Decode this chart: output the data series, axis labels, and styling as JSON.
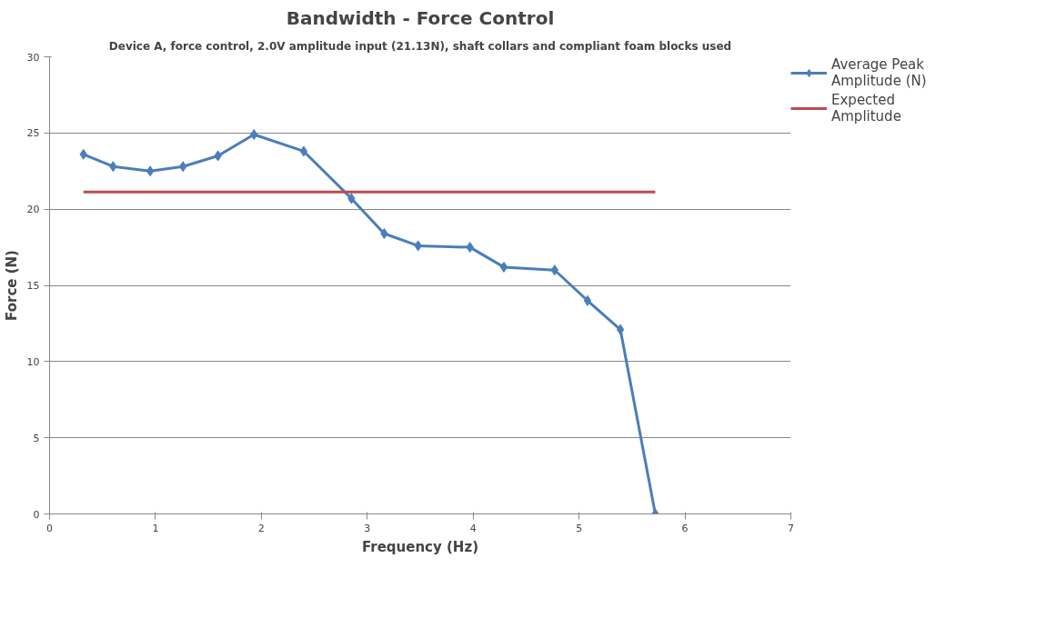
{
  "chart_data": {
    "type": "line",
    "title": "Bandwidth - Force Control",
    "subtitle": "Device A, force control, 2.0V amplitude input (21.13N), shaft collars and compliant foam blocks used",
    "xlabel": "Frequency (Hz)",
    "ylabel": "Force (N)",
    "xlim": [
      0,
      7
    ],
    "xticks": [
      0,
      1,
      2,
      3,
      4,
      5,
      6,
      7
    ],
    "ylim": [
      0,
      30
    ],
    "yticks": [
      0,
      5,
      10,
      15,
      20,
      25,
      30
    ],
    "grid": "y",
    "legend": "right",
    "series": [
      {
        "name": "Average Peak Amplitude (N)",
        "color": "#4a7ebb",
        "marker": "diamond",
        "x": [
          0.32,
          0.6,
          0.95,
          1.26,
          1.59,
          1.93,
          2.4,
          2.85,
          3.16,
          3.48,
          3.97,
          4.29,
          4.77,
          5.08,
          5.39,
          5.72
        ],
        "values": [
          23.6,
          22.8,
          22.5,
          22.8,
          23.5,
          24.9,
          23.8,
          20.7,
          18.4,
          17.6,
          17.5,
          16.2,
          16.0,
          14.0,
          12.1,
          0
        ]
      },
      {
        "name": "Expected Amplitude",
        "color": "#be4b48",
        "marker": "none",
        "x": [
          0.32,
          5.72
        ],
        "values": [
          21.13,
          21.13
        ]
      }
    ]
  }
}
